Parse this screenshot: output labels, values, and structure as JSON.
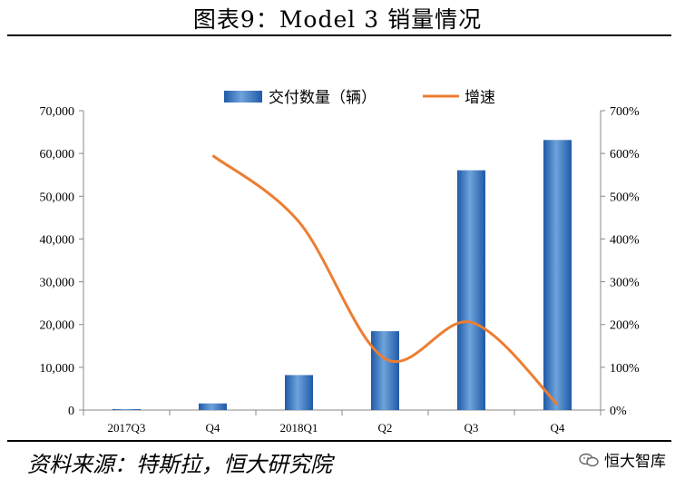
{
  "header": {
    "title": "图表9：Model 3 销量情况"
  },
  "footer": {
    "source": "资料来源：特斯拉，恒大研究院",
    "watermark": "恒大智库"
  },
  "chart_data": {
    "type": "bar",
    "categories": [
      "2017Q3",
      "Q4",
      "2018Q1",
      "Q2",
      "Q3",
      "Q4"
    ],
    "series": [
      {
        "name": "交付数量（辆）",
        "type": "bar",
        "axis": "left",
        "color": "#3d78c0",
        "values": [
          222,
          1550,
          8180,
          18440,
          56065,
          63150
        ]
      },
      {
        "name": "增速",
        "type": "line",
        "axis": "right",
        "color": "#ed7d31",
        "values": [
          null,
          5.95,
          4.4,
          1.2,
          2.05,
          0.13
        ]
      }
    ],
    "y_left": {
      "ylim": [
        0,
        70000
      ],
      "ticks": [
        "0",
        "10,000",
        "20,000",
        "30,000",
        "40,000",
        "50,000",
        "60,000",
        "70,000"
      ]
    },
    "y_right": {
      "ylim": [
        0,
        7
      ],
      "ticks": [
        "0%",
        "100%",
        "200%",
        "300%",
        "400%",
        "500%",
        "600%",
        "700%"
      ]
    },
    "grid": false,
    "legend_position": "top-center"
  }
}
